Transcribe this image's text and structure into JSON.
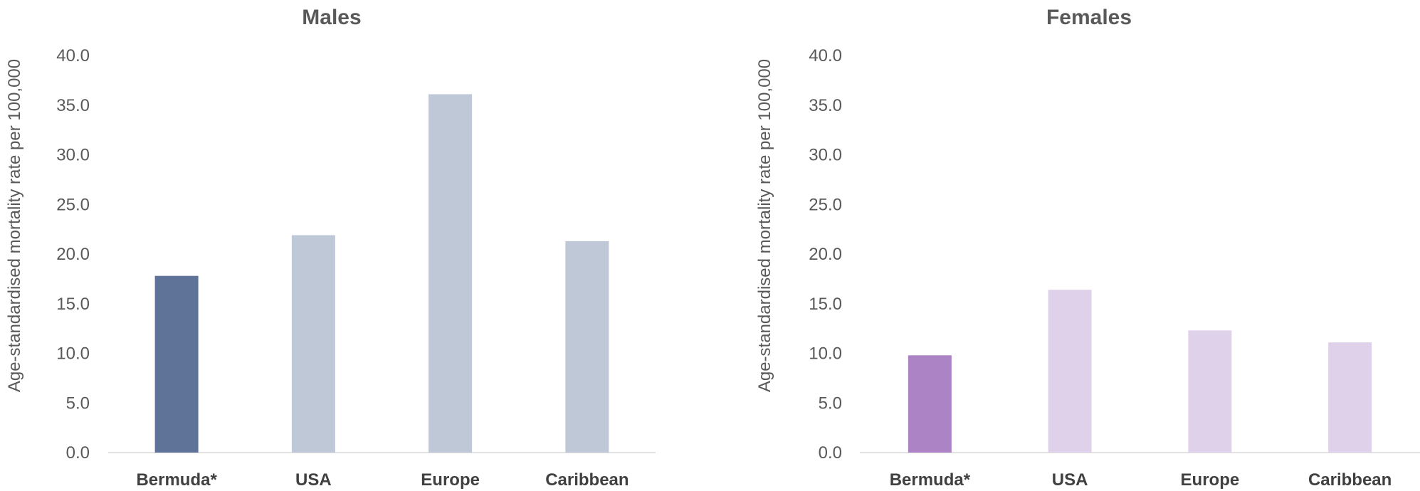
{
  "chart_data": [
    {
      "type": "bar",
      "title": "Males",
      "ylabel": "Age-standardised mortality rate per 100,000",
      "categories": [
        "Bermuda*",
        "USA",
        "Europe",
        "Caribbean"
      ],
      "values": [
        17.8,
        21.9,
        36.1,
        21.3
      ],
      "ylim": [
        0,
        40
      ],
      "yticks": [
        "0.0",
        "5.0",
        "10.0",
        "15.0",
        "20.0",
        "25.0",
        "30.0",
        "35.0",
        "40.0"
      ],
      "colors": [
        "#5f7399",
        "#bec8d7",
        "#bec8d7",
        "#bec8d7"
      ],
      "grid": false
    },
    {
      "type": "bar",
      "title": "Females",
      "ylabel": "Age-standardised mortality rate per 100,000",
      "categories": [
        "Bermuda*",
        "USA",
        "Europe",
        "Caribbean"
      ],
      "values": [
        9.8,
        16.4,
        12.3,
        11.1
      ],
      "ylim": [
        0,
        40
      ],
      "yticks": [
        "0.0",
        "5.0",
        "10.0",
        "15.0",
        "20.0",
        "25.0",
        "30.0",
        "35.0",
        "40.0"
      ],
      "colors": [
        "#ac84c6",
        "#e0d1ea",
        "#e0d1ea",
        "#e0d1ea"
      ],
      "grid": false
    }
  ]
}
